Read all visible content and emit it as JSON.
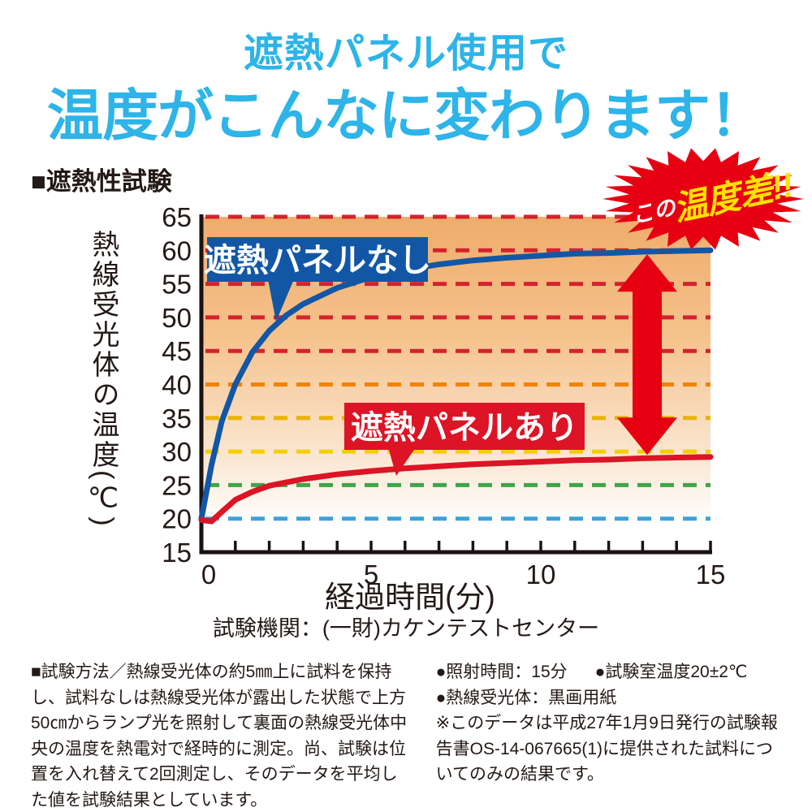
{
  "header": {
    "line1": "遮熱パネル使用で",
    "line2": "温度がこんなに変わります！",
    "accent_color": "#2db4e9"
  },
  "section_title": "■遮熱性試験",
  "badge": {
    "prefix": "この",
    "main": "温度差!!",
    "bg_color": "#e60012",
    "prefix_color": "#ffffff",
    "main_color": "#ffe100"
  },
  "chart_data": {
    "type": "line",
    "title": "遮熱性試験",
    "xlabel": "経過時間(分)",
    "ylabel": "熱線受光体の温度(℃)",
    "xlim": [
      0,
      15
    ],
    "ylim": [
      15,
      65
    ],
    "x_ticks": [
      0,
      5,
      10,
      15
    ],
    "y_ticks": [
      65,
      60,
      55,
      50,
      45,
      40,
      35,
      30,
      25,
      20,
      15
    ],
    "grid": "dashed horizontal lines, color-coded by temperature",
    "gridlines": [
      {
        "y": 65,
        "color": "#d3232e"
      },
      {
        "y": 60,
        "color": "#d3232e"
      },
      {
        "y": 55,
        "color": "#d3232e"
      },
      {
        "y": 50,
        "color": "#d3232e"
      },
      {
        "y": 45,
        "color": "#d3232e"
      },
      {
        "y": 40,
        "color": "#f08300"
      },
      {
        "y": 35,
        "color": "#e9b400"
      },
      {
        "y": 30,
        "color": "#f2d000"
      },
      {
        "y": 25,
        "color": "#3fa548"
      },
      {
        "y": 20,
        "color": "#3ba3dc"
      }
    ],
    "series": [
      {
        "name": "遮熱パネルなし",
        "color": "#1257a5",
        "x": [
          0,
          0.3,
          0.6,
          1,
          1.5,
          2,
          2.5,
          3,
          4,
          5,
          6,
          7,
          8,
          9,
          10,
          11,
          12,
          13,
          14,
          15
        ],
        "y": [
          20,
          28,
          34.5,
          40,
          44.8,
          48,
          50.3,
          52,
          54.4,
          56,
          57.1,
          57.9,
          58.5,
          58.9,
          59.2,
          59.5,
          59.6,
          59.8,
          59.9,
          60
        ]
      },
      {
        "name": "遮熱パネルあり",
        "color": "#dc1426",
        "x": [
          0,
          0.3,
          0.6,
          1,
          1.5,
          2,
          2.5,
          3,
          4,
          5,
          6,
          7,
          8,
          9,
          10,
          11,
          12,
          13,
          14,
          15
        ],
        "y": [
          19.8,
          19.6,
          21,
          22.8,
          24,
          24.9,
          25.4,
          25.9,
          26.6,
          27.1,
          27.5,
          27.8,
          28.1,
          28.3,
          28.5,
          28.7,
          28.8,
          29,
          29.1,
          29.2
        ]
      }
    ],
    "annotations": {
      "diff_arrow": {
        "x_min": 13.1,
        "top_temp": 59.4,
        "bottom_temp": 29.5,
        "color": "#e60012",
        "meaning": "temperature difference between the two curves at end of test"
      }
    },
    "legend_position": "labels boxed on-plot pointing at each curve",
    "plot_background": "orange-to-white vertical gradient"
  },
  "caption": "試験機関：(一財)カケンテストセンター",
  "footer": {
    "method": "■試験方法／熱線受光体の約5㎜上に試料を保持し、試料なしは熱線受光体が露出した状態で上方50㎝からランプ光を照射して裏面の熱線受光体中央の温度を熱電対で経時的に測定。尚、試験は位置を入れ替えて2回測定し、そのデータを平均した値を試験結果としています。",
    "irradiation": "●照射時間：15分",
    "room_temp": "●試験室温度20±2℃",
    "receiver": "●熱線受光体：黒画用紙",
    "note": "※このデータは平成27年1月9日発行の試験報告書OS-14-067665(1)に提供された試料についてのみの結果です。"
  }
}
